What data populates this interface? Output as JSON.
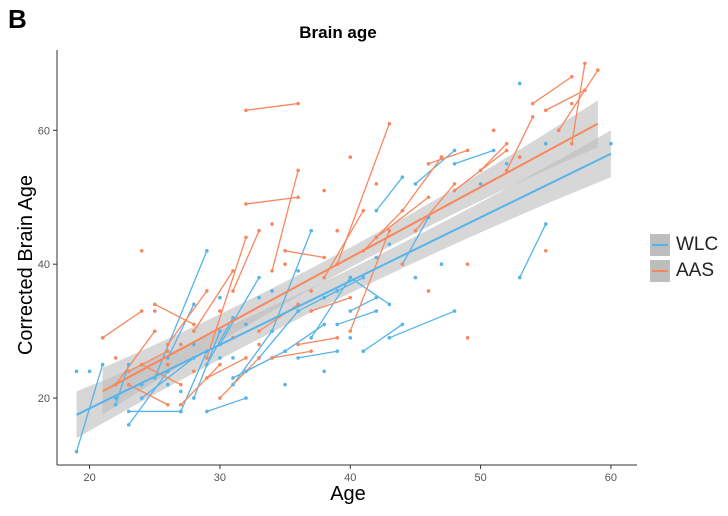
{
  "panel_label": "B",
  "chart_data": {
    "type": "scatter",
    "title": "Brain age",
    "xlabel": "Age",
    "ylabel": "Corrected Brain Age",
    "xlim": [
      17.5,
      62
    ],
    "ylim": [
      10,
      72
    ],
    "xticks": [
      20,
      30,
      40,
      50,
      60
    ],
    "yticks": [
      20,
      40,
      60
    ],
    "grid": false,
    "legend_position": "right",
    "colors": {
      "WLC": "#56b4e9",
      "AAS": "#f8875e",
      "band": "#bdbdbd"
    },
    "series": [
      {
        "name": "WLC",
        "fit": {
          "x": [
            19,
            60
          ],
          "y": [
            17.5,
            56.5
          ],
          "band": [
            1.8,
            3.5
          ]
        },
        "segments": [
          [
            [
              19,
              12
            ],
            [
              21,
              25
            ]
          ],
          [
            [
              22,
              19
            ],
            [
              23,
              25
            ]
          ],
          [
            [
              23,
              16
            ],
            [
              26,
              24
            ]
          ],
          [
            [
              24,
              20
            ],
            [
              28,
              26
            ]
          ],
          [
            [
              25,
              23
            ],
            [
              29,
              42
            ]
          ],
          [
            [
              26,
              26
            ],
            [
              28,
              34
            ]
          ],
          [
            [
              27,
              18
            ],
            [
              29,
              27
            ]
          ],
          [
            [
              28,
              20
            ],
            [
              30,
              30
            ]
          ],
          [
            [
              29,
              25
            ],
            [
              31,
              32
            ]
          ],
          [
            [
              30,
              28
            ],
            [
              33,
              38
            ]
          ],
          [
            [
              31,
              22
            ],
            [
              34,
              30
            ]
          ],
          [
            [
              32,
              24
            ],
            [
              35,
              27
            ]
          ],
          [
            [
              33,
              26
            ],
            [
              36,
              33
            ]
          ],
          [
            [
              34,
              30
            ],
            [
              37,
              45
            ]
          ],
          [
            [
              35,
              27
            ],
            [
              38,
              31
            ]
          ],
          [
            [
              36,
              33
            ],
            [
              39,
              36
            ]
          ],
          [
            [
              37,
              29
            ],
            [
              40,
              38
            ]
          ],
          [
            [
              38,
              35
            ],
            [
              41,
              38
            ]
          ],
          [
            [
              40,
              33
            ],
            [
              42,
              35
            ]
          ],
          [
            [
              41,
              27
            ],
            [
              44,
              31
            ]
          ],
          [
            [
              42,
              48
            ],
            [
              44,
              53
            ]
          ],
          [
            [
              43,
              29
            ],
            [
              48,
              33
            ]
          ],
          [
            [
              44,
              40
            ],
            [
              46,
              47
            ]
          ],
          [
            [
              45,
              52
            ],
            [
              48,
              57
            ]
          ],
          [
            [
              48,
              55
            ],
            [
              51,
              57
            ]
          ],
          [
            [
              53,
              38
            ],
            [
              55,
              46
            ]
          ],
          [
            [
              23,
              18
            ],
            [
              27,
              18
            ]
          ],
          [
            [
              29,
              18
            ],
            [
              32,
              20
            ]
          ],
          [
            [
              31,
              23
            ],
            [
              34,
              26
            ]
          ],
          [
            [
              36,
              26
            ],
            [
              39,
              27
            ]
          ],
          [
            [
              39,
              31
            ],
            [
              42,
              33
            ]
          ],
          [
            [
              40,
              38
            ],
            [
              43,
              34
            ]
          ]
        ],
        "points": [
          [
            19,
            24
          ],
          [
            20,
            24
          ],
          [
            22,
            20
          ],
          [
            24,
            22
          ],
          [
            26,
            22
          ],
          [
            27,
            21
          ],
          [
            28,
            28
          ],
          [
            30,
            26
          ],
          [
            30,
            35
          ],
          [
            31,
            26
          ],
          [
            32,
            31
          ],
          [
            33,
            35
          ],
          [
            34,
            36
          ],
          [
            35,
            22
          ],
          [
            36,
            39
          ],
          [
            38,
            24
          ],
          [
            40,
            29
          ],
          [
            43,
            43
          ],
          [
            45,
            38
          ],
          [
            47,
            40
          ],
          [
            50,
            52
          ],
          [
            53,
            67
          ],
          [
            52,
            55
          ],
          [
            55,
            58
          ],
          [
            60,
            58
          ],
          [
            42,
            41
          ]
        ]
      },
      {
        "name": "AAS",
        "fit": {
          "x": [
            21,
            59
          ],
          "y": [
            21,
            61
          ],
          "band": [
            1.5,
            3.5
          ]
        },
        "segments": [
          [
            [
              21,
              29
            ],
            [
              24,
              33
            ]
          ],
          [
            [
              22,
              22
            ],
            [
              25,
              30
            ]
          ],
          [
            [
              23,
              24
            ],
            [
              26,
              27
            ]
          ],
          [
            [
              24,
              25
            ],
            [
              27,
              22
            ]
          ],
          [
            [
              25,
              34
            ],
            [
              28,
              31
            ]
          ],
          [
            [
              26,
              28
            ],
            [
              29,
              36
            ]
          ],
          [
            [
              27,
              19
            ],
            [
              30,
              25
            ]
          ],
          [
            [
              28,
              30
            ],
            [
              31,
              39
            ]
          ],
          [
            [
              29,
              26
            ],
            [
              32,
              44
            ]
          ],
          [
            [
              30,
              20
            ],
            [
              33,
              26
            ]
          ],
          [
            [
              31,
              36
            ],
            [
              33,
              45
            ]
          ],
          [
            [
              32,
              49
            ],
            [
              36,
              50
            ]
          ],
          [
            [
              32,
              63
            ],
            [
              36,
              64
            ]
          ],
          [
            [
              33,
              30
            ],
            [
              36,
              34
            ]
          ],
          [
            [
              34,
              39
            ],
            [
              36,
              54
            ]
          ],
          [
            [
              35,
              42
            ],
            [
              38,
              41
            ]
          ],
          [
            [
              36,
              28
            ],
            [
              39,
              29
            ]
          ],
          [
            [
              37,
              33
            ],
            [
              40,
              35
            ]
          ],
          [
            [
              38,
              38
            ],
            [
              41,
              48
            ]
          ],
          [
            [
              39,
              40
            ],
            [
              43,
              61
            ]
          ],
          [
            [
              40,
              30
            ],
            [
              43,
              45
            ]
          ],
          [
            [
              41,
              42
            ],
            [
              44,
              48
            ]
          ],
          [
            [
              42,
              44
            ],
            [
              46,
              50
            ]
          ],
          [
            [
              44,
              48
            ],
            [
              47,
              56
            ]
          ],
          [
            [
              46,
              55
            ],
            [
              49,
              57
            ]
          ],
          [
            [
              48,
              51
            ],
            [
              52,
              57
            ]
          ],
          [
            [
              50,
              54
            ],
            [
              52,
              58
            ]
          ],
          [
            [
              52,
              54
            ],
            [
              54,
              62
            ]
          ],
          [
            [
              54,
              64
            ],
            [
              57,
              68
            ]
          ],
          [
            [
              55,
              63
            ],
            [
              58,
              66
            ]
          ],
          [
            [
              56,
              60
            ],
            [
              59,
              69
            ]
          ],
          [
            [
              57,
              58
            ],
            [
              58,
              70
            ]
          ],
          [
            [
              23,
              22
            ],
            [
              26,
              19
            ]
          ],
          [
            [
              29,
              23
            ],
            [
              32,
              26
            ]
          ],
          [
            [
              34,
              26
            ],
            [
              37,
              27
            ]
          ],
          [
            [
              45,
              45
            ],
            [
              48,
              52
            ]
          ]
        ],
        "points": [
          [
            22,
            26
          ],
          [
            24,
            42
          ],
          [
            25,
            33
          ],
          [
            26,
            25
          ],
          [
            27,
            28
          ],
          [
            28,
            24
          ],
          [
            30,
            33
          ],
          [
            31,
            29
          ],
          [
            33,
            28
          ],
          [
            35,
            40
          ],
          [
            37,
            36
          ],
          [
            38,
            51
          ],
          [
            39,
            45
          ],
          [
            40,
            56
          ],
          [
            42,
            52
          ],
          [
            44,
            40
          ],
          [
            47,
            56
          ],
          [
            49,
            40
          ],
          [
            49,
            29
          ],
          [
            51,
            60
          ],
          [
            53,
            56
          ],
          [
            55,
            42
          ],
          [
            57,
            64
          ],
          [
            46,
            36
          ],
          [
            34,
            46
          ]
        ]
      }
    ]
  }
}
